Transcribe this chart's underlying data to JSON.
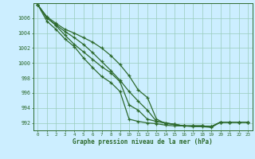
{
  "title": "Graphe pression niveau de la mer (hPa)",
  "bg_color": "#cceeff",
  "line_color": "#2d6a2d",
  "grid_color": "#99ccbb",
  "x_ticks": [
    0,
    1,
    2,
    3,
    4,
    5,
    6,
    7,
    8,
    9,
    10,
    11,
    12,
    13,
    14,
    15,
    16,
    17,
    18,
    19,
    20,
    21,
    22,
    23
  ],
  "ylim": [
    991.0,
    1008.0
  ],
  "yticks": [
    992,
    994,
    996,
    998,
    1000,
    1002,
    1004,
    1006
  ],
  "series": [
    [
      1007.8,
      1006.2,
      1005.3,
      1004.5,
      1004.0,
      1003.4,
      1002.8,
      1002.0,
      1001.0,
      999.8,
      998.3,
      996.4,
      995.4,
      992.5,
      991.9,
      991.8,
      991.6,
      991.6,
      991.6,
      991.5,
      992.1,
      992.1,
      992.1,
      992.1
    ],
    [
      1007.8,
      1006.0,
      1005.1,
      1004.2,
      1003.4,
      1002.5,
      1001.4,
      1000.2,
      999.0,
      997.7,
      996.2,
      994.9,
      993.7,
      992.2,
      992.0,
      991.8,
      991.6,
      991.5,
      991.5,
      991.4,
      992.1,
      992.1,
      992.1,
      992.1
    ],
    [
      1007.8,
      1005.6,
      1004.5,
      1003.2,
      1002.2,
      1000.7,
      999.4,
      998.2,
      997.4,
      996.2,
      992.5,
      992.2,
      992.0,
      991.9,
      991.7,
      991.6,
      991.6,
      991.6,
      991.6,
      991.5,
      992.1,
      992.1,
      992.1,
      992.1
    ],
    [
      1007.8,
      1006.1,
      1005.0,
      1003.7,
      1002.5,
      1001.5,
      1000.5,
      999.5,
      998.7,
      997.5,
      994.4,
      993.7,
      992.5,
      992.2,
      992.0,
      991.8,
      991.6,
      991.6,
      991.6,
      991.5,
      992.1,
      992.1,
      992.1,
      992.1
    ]
  ]
}
